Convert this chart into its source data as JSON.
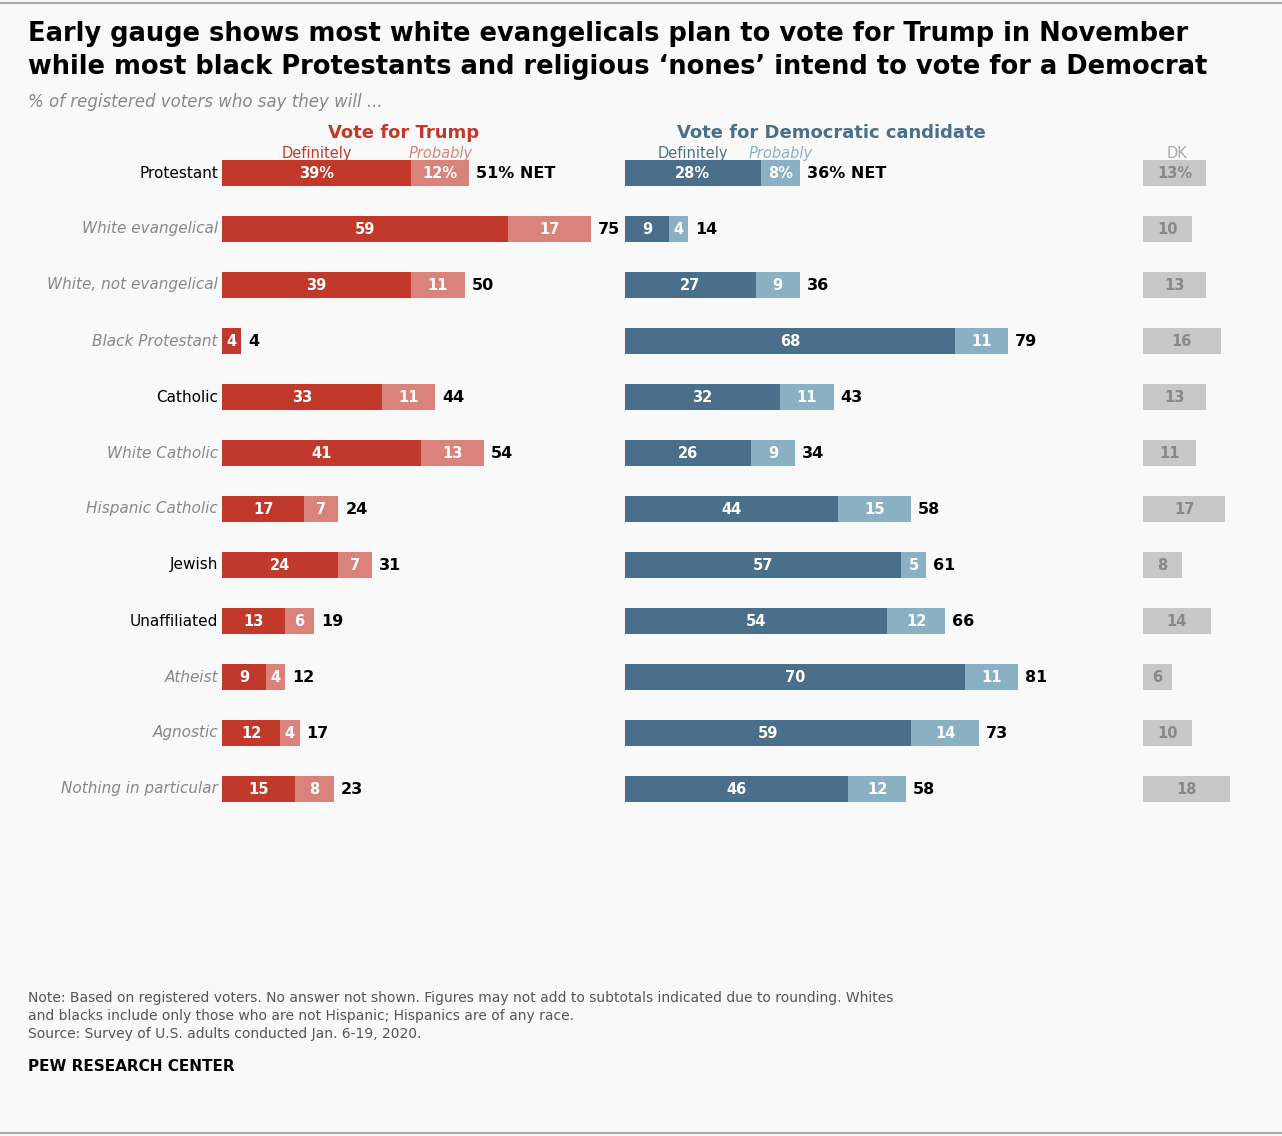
{
  "title_line1": "Early gauge shows most white evangelicals plan to vote for Trump in November",
  "title_line2": "while most black Protestants and religious ‘nones’ intend to vote for a Democrat",
  "subtitle": "% of registered voters who say they will ...",
  "note_line1": "Note: Based on registered voters. No answer not shown. Figures may not add to subtotals indicated due to rounding. Whites",
  "note_line2": "and blacks include only those who are not Hispanic; Hispanics are of any race.",
  "note_line3": "Source: Survey of U.S. adults conducted Jan. 6-19, 2020.",
  "source": "PEW RESEARCH CENTER",
  "categories": [
    "Protestant",
    "White evangelical",
    "White, not evangelical",
    "Black Protestant",
    "Catholic",
    "White Catholic",
    "Hispanic Catholic",
    "Jewish",
    "Unaffiliated",
    "Atheist",
    "Agnostic",
    "Nothing in particular"
  ],
  "italic_rows": [
    1,
    2,
    3,
    5,
    6,
    9,
    10,
    11
  ],
  "trump_def": [
    39,
    59,
    39,
    4,
    33,
    41,
    17,
    24,
    13,
    9,
    12,
    15
  ],
  "trump_prob": [
    12,
    17,
    11,
    0,
    11,
    13,
    7,
    7,
    6,
    4,
    4,
    8
  ],
  "trump_net": [
    "51% NET",
    "75",
    "50",
    "4",
    "44",
    "54",
    "24",
    "31",
    "19",
    "12",
    "17",
    "23"
  ],
  "trump_net_bold": [
    true,
    true,
    true,
    false,
    true,
    true,
    true,
    true,
    true,
    true,
    true,
    true
  ],
  "dem_def": [
    28,
    9,
    27,
    68,
    32,
    26,
    44,
    57,
    54,
    70,
    59,
    46
  ],
  "dem_prob": [
    8,
    4,
    9,
    11,
    11,
    9,
    15,
    5,
    12,
    11,
    14,
    12
  ],
  "dem_net": [
    "36% NET",
    "14",
    "36",
    "79",
    "43",
    "34",
    "58",
    "61",
    "66",
    "81",
    "73",
    "58"
  ],
  "dk": [
    13,
    10,
    13,
    16,
    13,
    11,
    17,
    8,
    14,
    6,
    10,
    18
  ],
  "trump_def_color": "#c0392b",
  "trump_prob_color": "#d9837b",
  "dem_def_color": "#4a6f8a",
  "dem_prob_color": "#8ab0c4",
  "dk_color": "#c8c8c8",
  "dk_text_color": "#888888",
  "bg_color": "#f9f9f9",
  "trump_header_color": "#c0392b",
  "dem_header_color": "#4a6f8a",
  "subheader_dem_probably_color": "#8ab0c4",
  "subheader_dk_color": "#aaaaaa"
}
